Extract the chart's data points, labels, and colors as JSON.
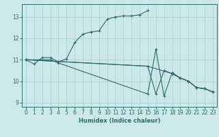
{
  "xlabel": "Humidex (Indice chaleur)",
  "xlim": [
    -0.5,
    23.5
  ],
  "ylim": [
    8.8,
    13.6
  ],
  "yticks": [
    9,
    10,
    11,
    12,
    13
  ],
  "xticks": [
    0,
    1,
    2,
    3,
    4,
    5,
    6,
    7,
    8,
    9,
    10,
    11,
    12,
    13,
    14,
    15,
    16,
    17,
    18,
    19,
    20,
    21,
    22,
    23
  ],
  "bg_color": "#cce8e8",
  "grid_color": "#aad4d4",
  "line_color": "#2a6b6b",
  "lines": [
    {
      "x": [
        0,
        1,
        2,
        3,
        4,
        5,
        6,
        7,
        8,
        9,
        10,
        11,
        12,
        13,
        14,
        15
      ],
      "y": [
        11.0,
        10.8,
        11.1,
        11.1,
        10.9,
        11.05,
        11.8,
        12.2,
        12.3,
        12.35,
        12.9,
        13.0,
        13.05,
        13.05,
        13.1,
        13.3
      ]
    },
    {
      "x": [
        0,
        3,
        4,
        15,
        16,
        17,
        18,
        19,
        20,
        21,
        22,
        23
      ],
      "y": [
        11.0,
        11.0,
        10.85,
        9.4,
        11.5,
        9.3,
        10.4,
        10.15,
        10.0,
        9.7,
        9.65,
        9.5
      ]
    },
    {
      "x": [
        0,
        15,
        16,
        17,
        18,
        19,
        20,
        21,
        22,
        23
      ],
      "y": [
        11.0,
        10.7,
        9.4,
        10.5,
        10.35,
        10.15,
        10.0,
        9.7,
        9.65,
        9.5
      ]
    },
    {
      "x": [
        0,
        15,
        18,
        19,
        20,
        21,
        22,
        23
      ],
      "y": [
        11.0,
        10.7,
        10.35,
        10.15,
        10.0,
        9.7,
        9.65,
        9.5
      ]
    }
  ]
}
